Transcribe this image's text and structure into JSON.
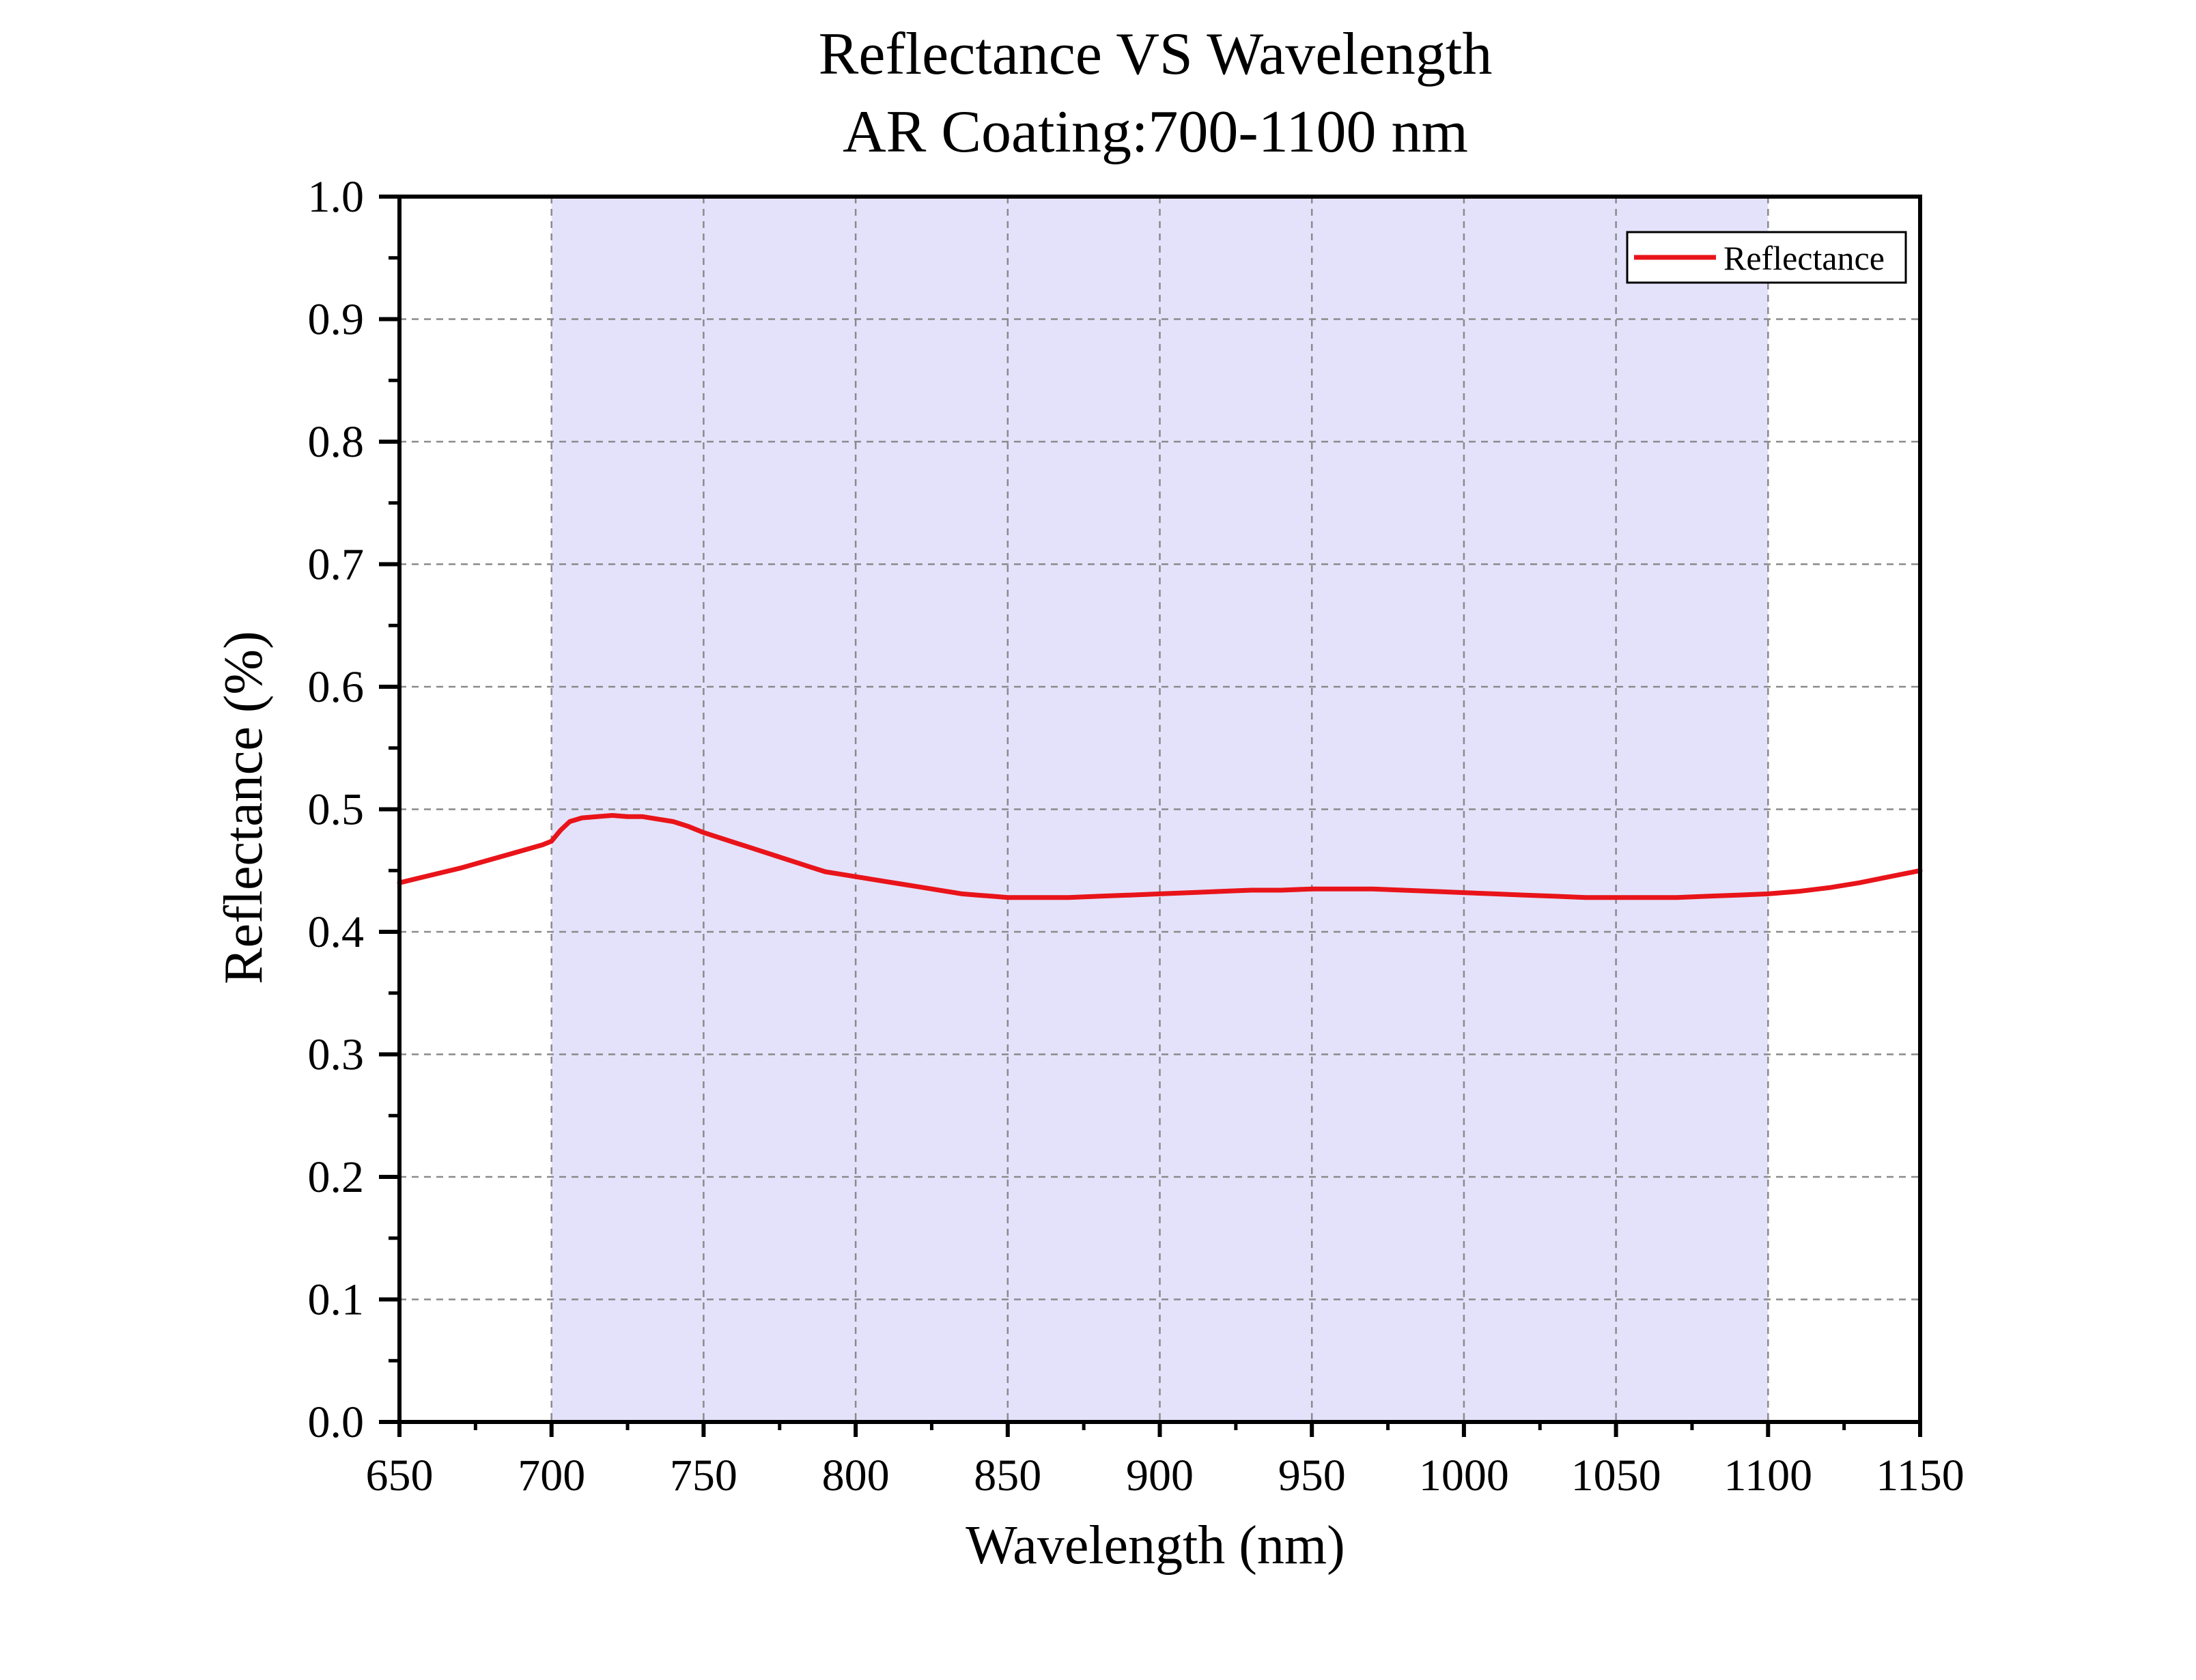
{
  "chart_data": {
    "type": "line",
    "title": "Reflectance VS Wavelength",
    "subtitle": "AR Coating:700-1100 nm",
    "xlabel": "Wavelength (nm)",
    "ylabel": "Reflectance (%)",
    "xlim": [
      650,
      1150
    ],
    "ylim": [
      0.0,
      1.0
    ],
    "xticks": [
      650,
      700,
      750,
      800,
      850,
      900,
      950,
      1000,
      1050,
      1100,
      1150
    ],
    "xtick_labels": [
      "650",
      "700",
      "750",
      "800",
      "850",
      "900",
      "950",
      "1000",
      "1050",
      "1100",
      "1150"
    ],
    "yticks": [
      0.0,
      0.1,
      0.2,
      0.3,
      0.4,
      0.5,
      0.6,
      0.7,
      0.8,
      0.9,
      1.0
    ],
    "ytick_labels": [
      "0.0",
      "0.1",
      "0.2",
      "0.3",
      "0.4",
      "0.5",
      "0.6",
      "0.7",
      "0.8",
      "0.9",
      "1.0"
    ],
    "grid": true,
    "legend_position": "top-right",
    "highlight_band": {
      "x_start": 700,
      "x_end": 1100,
      "color": "#e4e2fb"
    },
    "series": [
      {
        "name": "Reflectance",
        "color": "#e8141a",
        "x": [
          650,
          660,
          670,
          680,
          690,
          697,
          700,
          703,
          706,
          710,
          715,
          720,
          725,
          730,
          735,
          740,
          745,
          750,
          755,
          760,
          765,
          770,
          775,
          780,
          785,
          790,
          795,
          800,
          805,
          810,
          815,
          820,
          825,
          830,
          835,
          840,
          845,
          850,
          855,
          860,
          865,
          870,
          880,
          890,
          900,
          910,
          920,
          930,
          940,
          950,
          960,
          970,
          980,
          990,
          1000,
          1010,
          1020,
          1030,
          1040,
          1050,
          1060,
          1070,
          1080,
          1090,
          1100,
          1110,
          1120,
          1130,
          1140,
          1150
        ],
        "values": [
          0.44,
          0.446,
          0.452,
          0.459,
          0.466,
          0.471,
          0.474,
          0.483,
          0.49,
          0.493,
          0.494,
          0.495,
          0.494,
          0.494,
          0.492,
          0.49,
          0.486,
          0.481,
          0.477,
          0.473,
          0.469,
          0.465,
          0.461,
          0.457,
          0.453,
          0.449,
          0.447,
          0.445,
          0.443,
          0.441,
          0.439,
          0.437,
          0.435,
          0.433,
          0.431,
          0.43,
          0.429,
          0.428,
          0.428,
          0.428,
          0.428,
          0.428,
          0.429,
          0.43,
          0.431,
          0.432,
          0.433,
          0.434,
          0.434,
          0.435,
          0.435,
          0.435,
          0.434,
          0.433,
          0.432,
          0.431,
          0.43,
          0.429,
          0.428,
          0.428,
          0.428,
          0.428,
          0.429,
          0.43,
          0.431,
          0.433,
          0.436,
          0.44,
          0.445,
          0.45
        ]
      }
    ]
  }
}
